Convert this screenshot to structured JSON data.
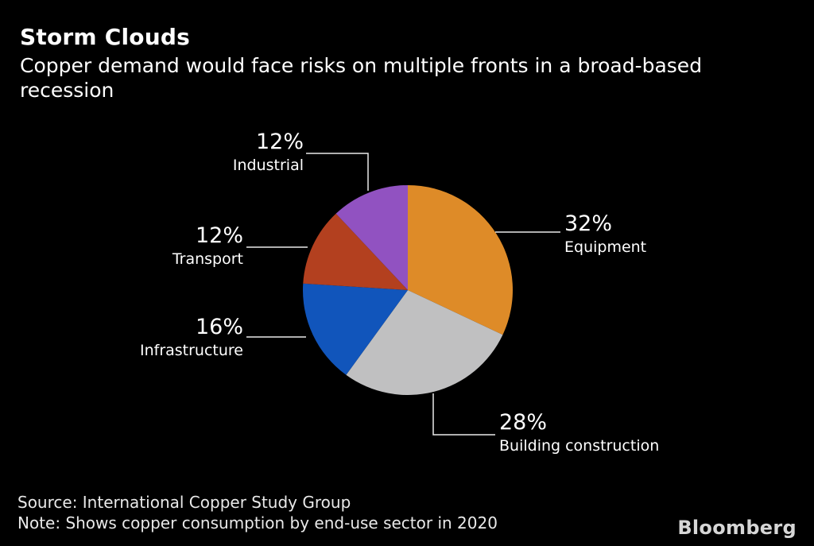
{
  "chart_data": {
    "type": "pie",
    "title": "Storm Clouds",
    "subtitle": "Copper demand would face risks on multiple fronts in a broad-based recession",
    "unit": "%",
    "start_angle_deg": 0,
    "direction": "clockwise",
    "legend": "none",
    "label_style": "external labels with white leader lines",
    "categories": [
      "Equipment",
      "Building construction",
      "Infrastructure",
      "Transport",
      "Industrial"
    ],
    "values": [
      32,
      28,
      16,
      12,
      12
    ],
    "slices": [
      {
        "name": "Equipment",
        "value": 32,
        "pct_label": "32%",
        "color": "#DE8B28"
      },
      {
        "name": "Building construction",
        "value": 28,
        "pct_label": "28%",
        "color": "#C0C0C1"
      },
      {
        "name": "Infrastructure",
        "value": 16,
        "pct_label": "16%",
        "color": "#1155BB"
      },
      {
        "name": "Transport",
        "value": 12,
        "pct_label": "12%",
        "color": "#B3401F"
      },
      {
        "name": "Industrial",
        "value": 12,
        "pct_label": "12%",
        "color": "#9152C1"
      }
    ]
  },
  "footer": {
    "source": "Source: International Copper Study Group",
    "note": "Note: Shows copper consumption by end-use sector in 2020",
    "brand": "Bloomberg"
  },
  "colors": {
    "background": "#000000",
    "text": "#FFFFFF",
    "leader_line": "#E9E9E9"
  }
}
